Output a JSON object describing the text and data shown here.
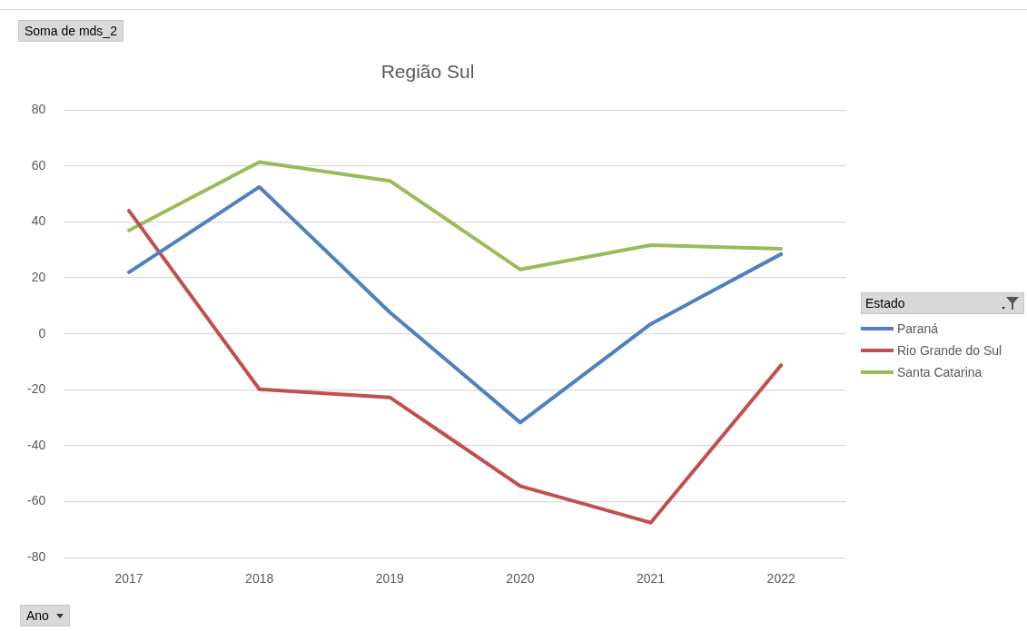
{
  "chart_data": {
    "type": "line",
    "title": "Região Sul",
    "annotations": [
      "Soma de mds_2"
    ],
    "xlabel": "Ano",
    "legend_title": "Estado",
    "categories": [
      "2017",
      "2018",
      "2019",
      "2020",
      "2021",
      "2022"
    ],
    "series": [
      {
        "name": "Paraná",
        "color": "#4f81bd",
        "values": [
          22,
          52.5,
          7.7,
          -31.7,
          3.5,
          28.5
        ]
      },
      {
        "name": "Rio Grande do Sul",
        "color": "#c0504d",
        "values": [
          44,
          -19.8,
          -22.7,
          -54.4,
          -67.5,
          -11.2
        ]
      },
      {
        "name": "Santa Catarina",
        "color": "#9bbb59",
        "values": [
          37,
          61.4,
          54.7,
          23,
          31.7,
          30.4
        ]
      }
    ],
    "ylim": [
      -80,
      80
    ],
    "yticks": [
      -80,
      -60,
      -40,
      -20,
      0,
      20,
      40,
      60,
      80
    ],
    "grid": "y",
    "legend": "right",
    "marker": "none",
    "line_style": "solid"
  }
}
